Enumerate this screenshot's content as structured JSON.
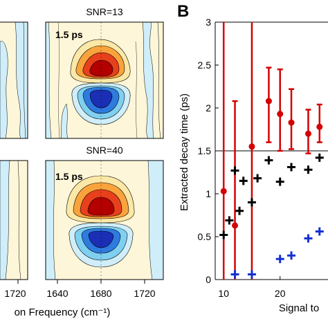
{
  "panel_b_letter": "B",
  "contour": {
    "titles": [
      "SNR=13",
      "SNR=40"
    ],
    "inset_labels": [
      "1.5 ps",
      "1.5 ps"
    ],
    "x_ticks": [
      "1640",
      "1680",
      "1720"
    ],
    "left_partial_tick": "1720",
    "xlabel_partial": "on Frequency (cm⁻¹)",
    "colors": {
      "pos_deep": "#b30000",
      "pos_mid": "#e8401c",
      "pos_light": "#f9a33c",
      "pos_pale": "#fce8a6",
      "neg_deep": "#1a2fb5",
      "neg_mid": "#2e7be0",
      "neg_light": "#7fd0f0",
      "neg_pale": "#cfeefa",
      "background": "#fdf6d8"
    }
  },
  "chart_data": {
    "type": "scatter",
    "xlabel": "Signal to",
    "ylabel": "Extracted decay time (ps)",
    "x_ticks": [
      "10",
      "20"
    ],
    "y_ticks": [
      "0",
      "0.5",
      "1",
      "1.5",
      "2",
      "2.5",
      "3"
    ],
    "xlim": [
      8.5,
      28.5
    ],
    "ylim": [
      0,
      3
    ],
    "reference_line": 1.5,
    "colors": {
      "red": "#d40000",
      "black": "#000000",
      "blue": "#1530d0"
    },
    "series": [
      {
        "marker": "dot-errorbar",
        "color": "red",
        "points": [
          {
            "x": 10,
            "y": 1.03,
            "lo": 0.0,
            "hi": 3.0
          },
          {
            "x": 12,
            "y": 0.63,
            "lo": 0.0,
            "hi": 2.08
          },
          {
            "x": 15,
            "y": 1.55,
            "lo": 0.0,
            "hi": 3.0
          },
          {
            "x": 18,
            "y": 2.08,
            "lo": 1.6,
            "hi": 2.47
          },
          {
            "x": 20,
            "y": 1.93,
            "lo": 1.5,
            "hi": 2.45
          },
          {
            "x": 22,
            "y": 1.83,
            "lo": 1.52,
            "hi": 2.22
          },
          {
            "x": 25,
            "y": 1.7,
            "lo": 1.47,
            "hi": 1.98
          },
          {
            "x": 27,
            "y": 1.78,
            "lo": 1.6,
            "hi": 2.04
          }
        ]
      },
      {
        "marker": "plus",
        "color": "black",
        "points": [
          {
            "x": 10,
            "y": 0.52
          },
          {
            "x": 11,
            "y": 0.69
          },
          {
            "x": 12,
            "y": 1.27
          },
          {
            "x": 12.8,
            "y": 0.8
          },
          {
            "x": 13.5,
            "y": 1.15
          },
          {
            "x": 15,
            "y": 0.9
          },
          {
            "x": 16,
            "y": 1.18
          },
          {
            "x": 18,
            "y": 1.39
          },
          {
            "x": 20,
            "y": 1.14
          },
          {
            "x": 22,
            "y": 1.31
          },
          {
            "x": 25,
            "y": 1.28
          },
          {
            "x": 27,
            "y": 1.42
          }
        ]
      },
      {
        "marker": "plus",
        "color": "blue",
        "points": [
          {
            "x": 12,
            "y": 0.06
          },
          {
            "x": 15,
            "y": 0.06
          },
          {
            "x": 20,
            "y": 0.24
          },
          {
            "x": 22,
            "y": 0.28
          },
          {
            "x": 25,
            "y": 0.48
          },
          {
            "x": 27,
            "y": 0.56
          }
        ]
      }
    ]
  }
}
